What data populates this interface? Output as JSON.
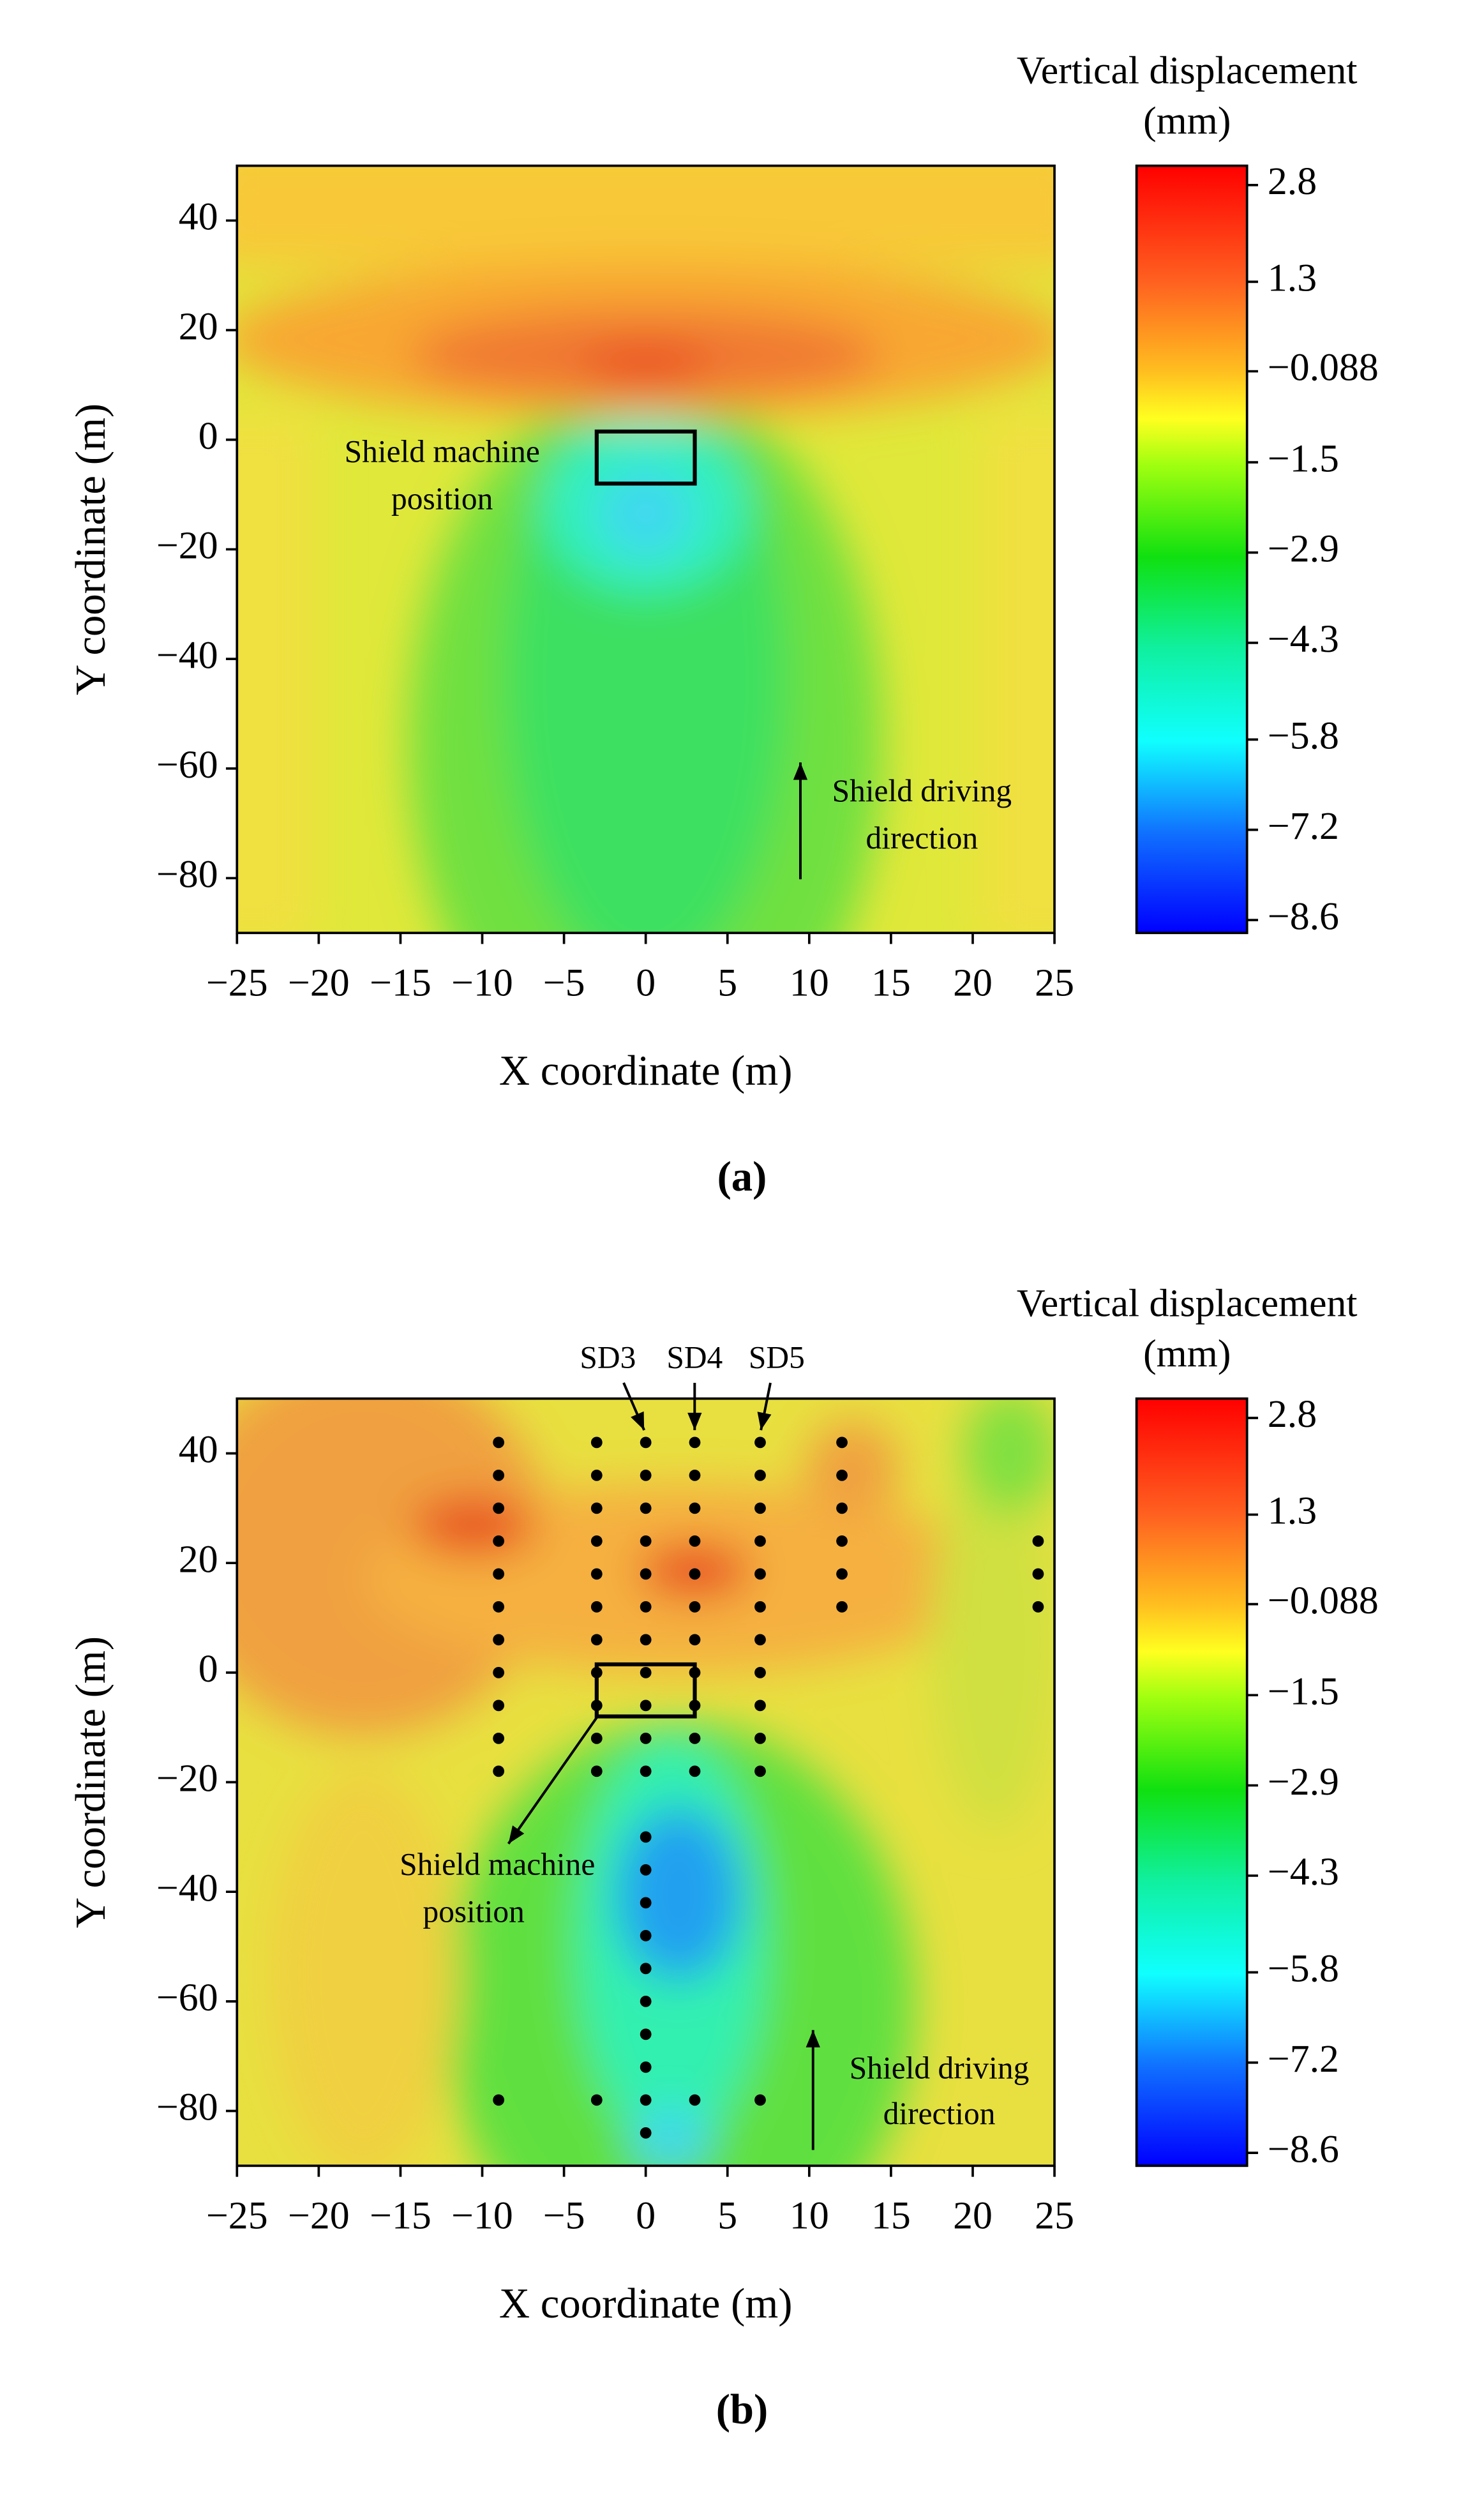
{
  "chart_data": [
    {
      "type": "contour",
      "panel_label": "(a)",
      "xlabel": "X coordinate (m)",
      "ylabel": "Y coordinate (m)",
      "xlim": [
        -25,
        25
      ],
      "ylim": [
        -90,
        50
      ],
      "xticks": [
        {
          "value": -25,
          "label": "−25"
        },
        {
          "value": -20,
          "label": "−20"
        },
        {
          "value": -15,
          "label": "−15"
        },
        {
          "value": -10,
          "label": "−10"
        },
        {
          "value": -5,
          "label": "−5"
        },
        0,
        5,
        10,
        15,
        20,
        25
      ],
      "yticks": [
        40,
        20,
        0,
        {
          "value": -20,
          "label": "−20"
        },
        {
          "value": -40,
          "label": "−40"
        },
        {
          "value": -60,
          "label": "−60"
        },
        {
          "value": -80,
          "label": "−80"
        }
      ],
      "colorbar": {
        "label": [
          "Vertical displacement",
          "(mm)"
        ],
        "lim": [
          -8.8,
          3.1
        ],
        "ticks": [
          2.8,
          1.3,
          {
            "value": -0.088,
            "label": "−0.088"
          },
          {
            "value": -1.5,
            "label": "−1.5"
          },
          {
            "value": -2.9,
            "label": "−2.9"
          },
          {
            "value": -4.3,
            "label": "−4.3"
          },
          {
            "value": -5.8,
            "label": "−5.8"
          },
          {
            "value": -7.2,
            "label": "−7.2"
          },
          {
            "value": -8.6,
            "label": "−8.6"
          }
        ]
      },
      "shield_box": {
        "x": [
          -3,
          3
        ],
        "y": [
          -8,
          1.5
        ]
      },
      "annotations": [
        {
          "text": [
            "Shield machine",
            "position"
          ]
        },
        {
          "text": [
            "Shield driving",
            "direction"
          ]
        }
      ]
    },
    {
      "type": "contour",
      "panel_label": "(b)",
      "xlabel": "X coordinate (m)",
      "ylabel": "Y coordinate (m)",
      "xlim": [
        -25,
        25
      ],
      "ylim": [
        -90,
        50
      ],
      "xticks": [
        {
          "value": -25,
          "label": "−25"
        },
        {
          "value": -20,
          "label": "−20"
        },
        {
          "value": -15,
          "label": "−15"
        },
        {
          "value": -10,
          "label": "−10"
        },
        {
          "value": -5,
          "label": "−5"
        },
        0,
        5,
        10,
        15,
        20,
        25
      ],
      "yticks": [
        40,
        20,
        0,
        {
          "value": -20,
          "label": "−20"
        },
        {
          "value": -40,
          "label": "−40"
        },
        {
          "value": -60,
          "label": "−60"
        },
        {
          "value": -80,
          "label": "−80"
        }
      ],
      "colorbar": {
        "label": [
          "Vertical displacement",
          "(mm)"
        ],
        "lim": [
          -8.8,
          3.1
        ],
        "ticks": [
          2.8,
          1.3,
          {
            "value": -0.088,
            "label": "−0.088"
          },
          {
            "value": -1.5,
            "label": "−1.5"
          },
          {
            "value": -2.9,
            "label": "−2.9"
          },
          {
            "value": -4.3,
            "label": "−4.3"
          },
          {
            "value": -5.8,
            "label": "−5.8"
          },
          {
            "value": -7.2,
            "label": "−7.2"
          },
          {
            "value": -8.6,
            "label": "−8.6"
          }
        ]
      },
      "shield_box": {
        "x": [
          -3,
          3
        ],
        "y": [
          -8,
          1.5
        ]
      },
      "points": {
        "x": [
          -9,
          -9,
          -9,
          -9,
          -9,
          -9,
          -9,
          -9,
          -9,
          -9,
          -9,
          -3,
          -3,
          -3,
          -3,
          -3,
          -3,
          -3,
          -3,
          -3,
          -3,
          -3,
          0,
          0,
          0,
          0,
          0,
          0,
          0,
          0,
          0,
          0,
          0,
          0,
          0,
          0,
          0,
          0,
          0,
          0,
          0,
          0,
          0,
          3,
          3,
          3,
          3,
          3,
          3,
          3,
          3,
          3,
          3,
          3,
          7,
          7,
          7,
          7,
          7,
          7,
          7,
          7,
          7,
          7,
          7,
          12,
          12,
          12,
          12,
          12,
          12,
          24,
          24,
          24,
          -9,
          -3,
          3,
          7
        ],
        "y": [
          42,
          36,
          30,
          24,
          18,
          12,
          6,
          0,
          -6,
          -12,
          -18,
          42,
          36,
          30,
          24,
          18,
          12,
          6,
          0,
          -6,
          -12,
          -18,
          42,
          36,
          30,
          24,
          18,
          12,
          6,
          0,
          -6,
          -12,
          -18,
          -30,
          -36,
          -42,
          -48,
          -54,
          -60,
          -66,
          -72,
          -78,
          -84,
          42,
          36,
          30,
          24,
          18,
          12,
          6,
          0,
          -6,
          -12,
          -18,
          42,
          36,
          30,
          24,
          18,
          12,
          6,
          0,
          -6,
          -12,
          -18,
          42,
          36,
          30,
          24,
          18,
          12,
          24,
          18,
          12,
          -78,
          -78,
          -78,
          -78
        ]
      },
      "annotations": [
        {
          "text": [
            "Shield machine",
            "position"
          ]
        },
        {
          "text": [
            "Shield driving",
            "direction"
          ]
        },
        {
          "text": [
            "SD3"
          ]
        },
        {
          "text": [
            "SD4"
          ]
        },
        {
          "text": [
            "SD5"
          ]
        }
      ]
    }
  ]
}
